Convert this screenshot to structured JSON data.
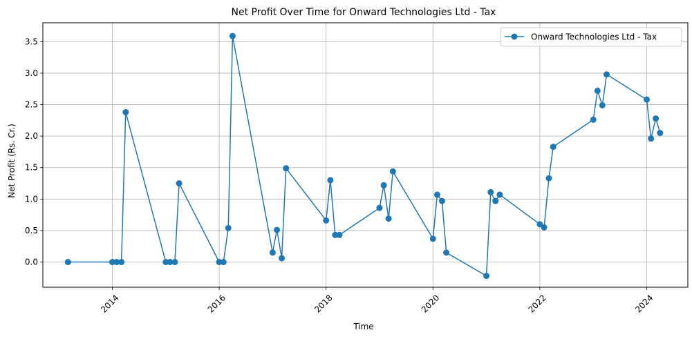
{
  "chart_data": {
    "type": "line",
    "title": "Net Profit Over Time for Onward Technologies Ltd - Tax",
    "xlabel": "Time",
    "ylabel": "Net Profit (Rs. Cr.)",
    "xlim": [
      2012.7,
      2024.77
    ],
    "ylim": [
      -0.4,
      3.8
    ],
    "xticks": [
      2014,
      2016,
      2018,
      2020,
      2022,
      2024
    ],
    "xtick_labels": [
      "2014",
      "2016",
      "2018",
      "2020",
      "2022",
      "2024"
    ],
    "yticks": [
      0.0,
      0.5,
      1.0,
      1.5,
      2.0,
      2.5,
      3.0,
      3.5
    ],
    "ytick_labels": [
      "0.0",
      "0.5",
      "1.0",
      "1.5",
      "2.0",
      "2.5",
      "3.0",
      "3.5"
    ],
    "grid": true,
    "legend_position": "top-right",
    "series": [
      {
        "name": "Onward Technologies Ltd - Tax",
        "color": "#1f77b4",
        "marker": "circle",
        "x": [
          2013.17,
          2014.0,
          2014.08,
          2014.17,
          2014.25,
          2015.0,
          2015.08,
          2015.17,
          2015.25,
          2016.0,
          2016.08,
          2016.17,
          2016.25,
          2017.0,
          2017.08,
          2017.17,
          2017.25,
          2018.0,
          2018.08,
          2018.17,
          2018.25,
          2019.0,
          2019.08,
          2019.17,
          2019.25,
          2020.0,
          2020.08,
          2020.17,
          2020.25,
          2021.0,
          2021.08,
          2021.17,
          2021.25,
          2022.0,
          2022.08,
          2022.17,
          2022.25,
          2023.0,
          2023.08,
          2023.17,
          2023.25,
          2024.0,
          2024.08,
          2024.17,
          2024.25
        ],
        "values": [
          0.0,
          0.0,
          0.0,
          0.0,
          2.38,
          0.0,
          0.0,
          0.0,
          1.25,
          0.0,
          0.0,
          0.54,
          3.59,
          0.15,
          0.51,
          0.06,
          1.49,
          0.66,
          1.3,
          0.43,
          0.43,
          0.86,
          1.22,
          0.69,
          1.44,
          0.37,
          1.07,
          0.97,
          0.15,
          -0.22,
          1.11,
          0.97,
          1.07,
          0.6,
          0.55,
          1.33,
          1.83,
          2.26,
          2.72,
          2.49,
          2.98,
          2.58,
          1.96,
          2.28,
          2.05
        ]
      }
    ]
  }
}
